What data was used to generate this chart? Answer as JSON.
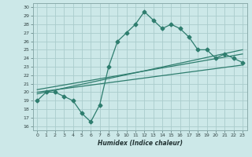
{
  "title": "",
  "xlabel": "Humidex (Indice chaleur)",
  "bg_color": "#cce8e8",
  "grid_color": "#aacccc",
  "line_color": "#2e7d6e",
  "xlim": [
    -0.5,
    23.5
  ],
  "ylim": [
    15.5,
    30.5
  ],
  "xticks": [
    0,
    1,
    2,
    3,
    4,
    5,
    6,
    7,
    8,
    9,
    10,
    11,
    12,
    13,
    14,
    15,
    16,
    17,
    18,
    19,
    20,
    21,
    22,
    23
  ],
  "yticks": [
    16,
    17,
    18,
    19,
    20,
    21,
    22,
    23,
    24,
    25,
    26,
    27,
    28,
    29,
    30
  ],
  "main_x": [
    0,
    1,
    2,
    3,
    4,
    5,
    6,
    7,
    8,
    9,
    10,
    11,
    12,
    13,
    14,
    15,
    16,
    17,
    18,
    19,
    20,
    21,
    22,
    23
  ],
  "main_y": [
    19,
    20,
    20,
    19.5,
    19,
    17.5,
    16.5,
    18.5,
    23,
    26,
    27,
    28,
    29.5,
    28.5,
    27.5,
    28,
    27.5,
    26.5,
    25,
    25,
    24,
    24.5,
    24,
    23.5
  ],
  "line1_x": [
    0,
    23
  ],
  "line1_y": [
    19.8,
    25.0
  ],
  "line2_x": [
    0,
    23
  ],
  "line2_y": [
    20.3,
    24.5
  ],
  "line3_x": [
    0,
    23
  ],
  "line3_y": [
    20.0,
    23.2
  ],
  "marker_size": 2.5,
  "line_width": 0.9
}
